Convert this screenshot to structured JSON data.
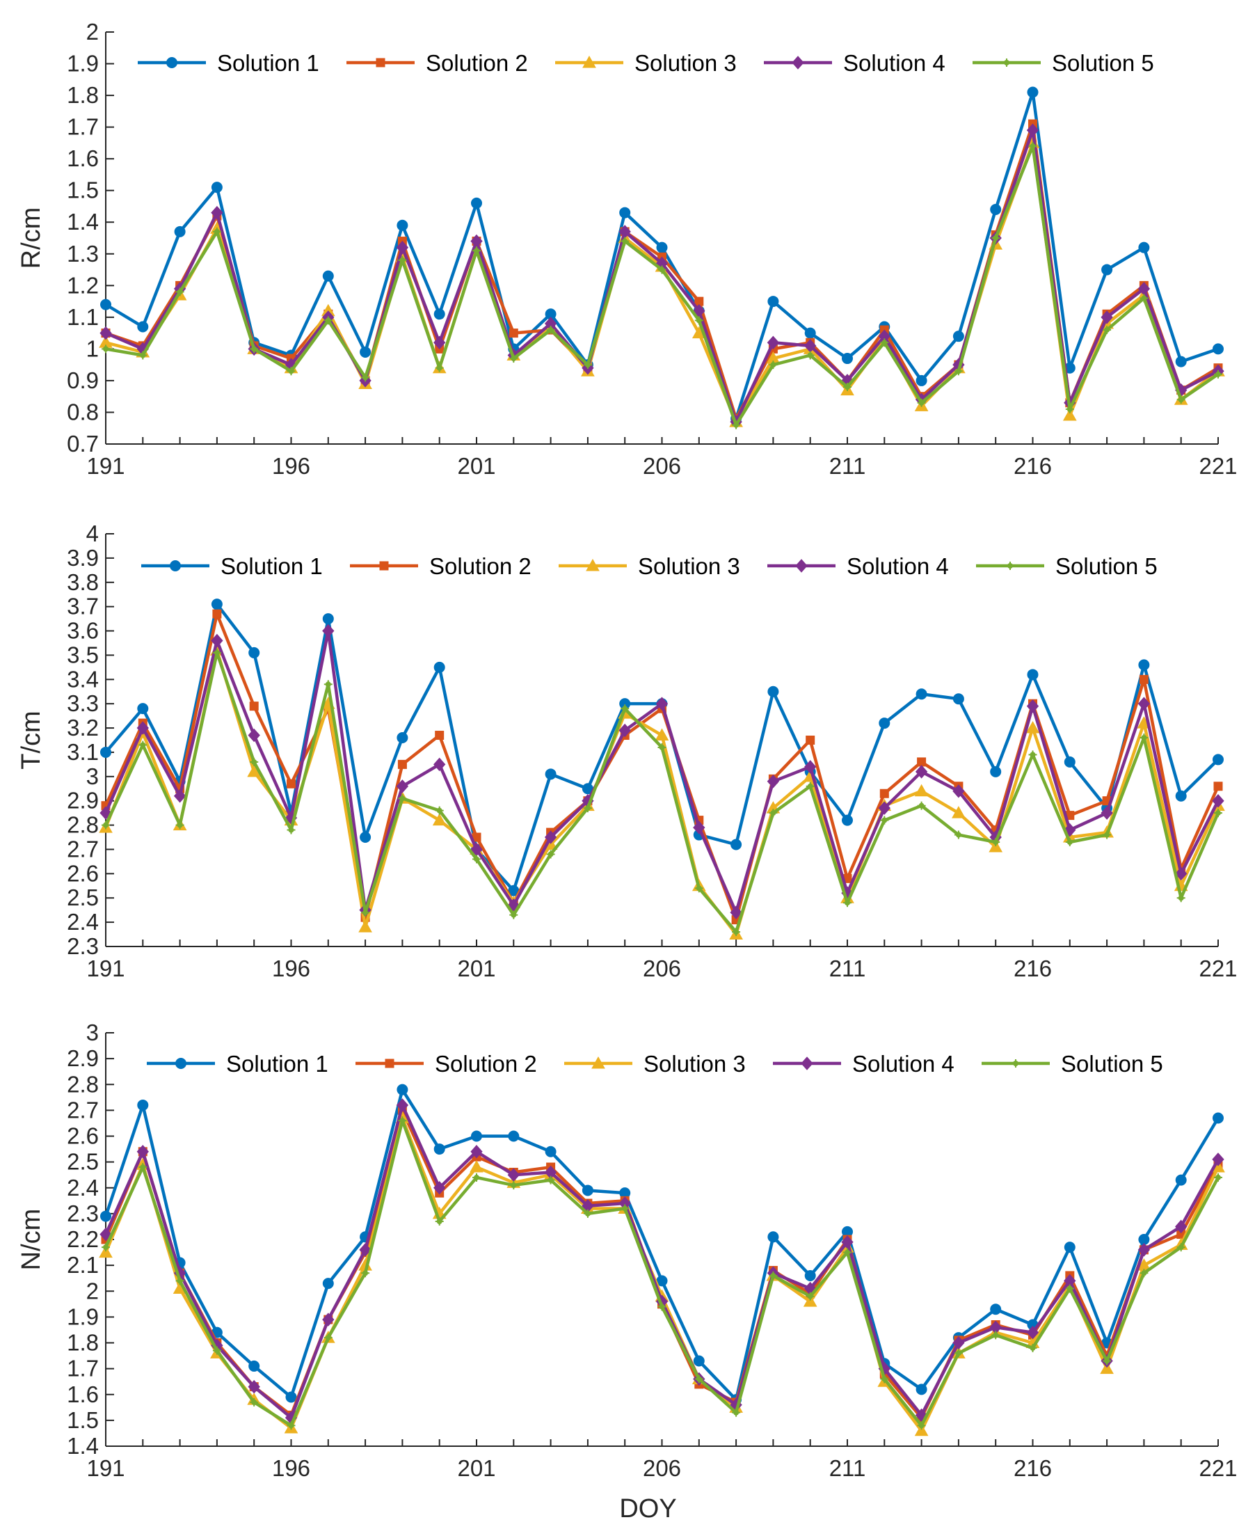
{
  "colors": {
    "Solution 1": "#0072BD",
    "Solution 2": "#D95319",
    "Solution 3": "#EDB120",
    "Solution 4": "#7E2F8E",
    "Solution 5": "#77AC30",
    "axis": "#262626"
  },
  "markers": {
    "Solution 1": "circle-marker",
    "Solution 2": "square-marker",
    "Solution 3": "triangle-marker",
    "Solution 4": "diamond-marker",
    "Solution 5": "star-marker"
  },
  "chart_data": [
    {
      "type": "line",
      "title": "",
      "xlabel": "",
      "ylabel": "R/cm",
      "xlim": [
        191,
        221
      ],
      "ylim": [
        0.7,
        2.0
      ],
      "xticks": [
        191,
        196,
        201,
        206,
        211,
        216,
        221
      ],
      "yticks": [
        0.7,
        0.8,
        0.9,
        1,
        1.1,
        1.2,
        1.3,
        1.4,
        1.5,
        1.6,
        1.7,
        1.8,
        1.9,
        2
      ],
      "ytick_labels": [
        "0.7",
        "0.8",
        "0.9",
        "1",
        "1.1",
        "1.2",
        "1.3",
        "1.4",
        "1.5",
        "1.6",
        "1.7",
        "1.8",
        "1.9",
        "2"
      ],
      "legend": "top, horizontal",
      "grid": false,
      "x": [
        191,
        192,
        193,
        194,
        195,
        196,
        197,
        198,
        199,
        200,
        201,
        202,
        203,
        204,
        205,
        206,
        207,
        208,
        209,
        210,
        211,
        212,
        213,
        214,
        215,
        216,
        217,
        218,
        219,
        220,
        221
      ],
      "series": [
        {
          "name": "Solution 1",
          "values": [
            1.14,
            1.07,
            1.37,
            1.51,
            1.02,
            0.98,
            1.23,
            0.99,
            1.39,
            1.11,
            1.46,
            1.0,
            1.11,
            0.95,
            1.43,
            1.32,
            1.12,
            0.78,
            1.15,
            1.05,
            0.97,
            1.07,
            0.9,
            1.04,
            1.44,
            1.81,
            0.94,
            1.25,
            1.32,
            0.96,
            1.0
          ]
        },
        {
          "name": "Solution 2",
          "values": [
            1.05,
            1.01,
            1.2,
            1.42,
            1.01,
            0.97,
            1.11,
            0.9,
            1.34,
            1.0,
            1.34,
            1.05,
            1.06,
            0.94,
            1.37,
            1.29,
            1.15,
            0.78,
            1.0,
            1.02,
            0.9,
            1.06,
            0.85,
            0.95,
            1.36,
            1.71,
            0.83,
            1.11,
            1.2,
            0.87,
            0.94
          ]
        },
        {
          "name": "Solution 3",
          "values": [
            1.02,
            0.99,
            1.17,
            1.38,
            1.0,
            0.94,
            1.12,
            0.89,
            1.29,
            0.94,
            1.31,
            0.98,
            1.07,
            0.93,
            1.35,
            1.26,
            1.05,
            0.77,
            0.97,
            1.0,
            0.87,
            1.03,
            0.82,
            0.94,
            1.33,
            1.65,
            0.79,
            1.08,
            1.17,
            0.84,
            0.93
          ]
        },
        {
          "name": "Solution 4",
          "values": [
            1.05,
            1.0,
            1.19,
            1.43,
            1.0,
            0.95,
            1.1,
            0.9,
            1.32,
            1.02,
            1.34,
            0.98,
            1.08,
            0.94,
            1.37,
            1.27,
            1.12,
            0.77,
            1.02,
            1.01,
            0.9,
            1.04,
            0.84,
            0.95,
            1.35,
            1.69,
            0.83,
            1.1,
            1.19,
            0.87,
            0.93
          ]
        },
        {
          "name": "Solution 5",
          "values": [
            1.0,
            0.98,
            1.18,
            1.37,
            1.0,
            0.93,
            1.09,
            0.91,
            1.28,
            0.94,
            1.31,
            0.97,
            1.06,
            0.95,
            1.34,
            1.25,
            1.09,
            0.76,
            0.95,
            0.98,
            0.88,
            1.02,
            0.83,
            0.93,
            1.35,
            1.64,
            0.81,
            1.06,
            1.16,
            0.84,
            0.92
          ]
        }
      ]
    },
    {
      "type": "line",
      "title": "",
      "xlabel": "",
      "ylabel": "T/cm",
      "xlim": [
        191,
        221
      ],
      "ylim": [
        2.3,
        4.0
      ],
      "xticks": [
        191,
        196,
        201,
        206,
        211,
        216,
        221
      ],
      "yticks": [
        2.3,
        2.4,
        2.5,
        2.6,
        2.7,
        2.8,
        2.9,
        3,
        3.1,
        3.2,
        3.3,
        3.4,
        3.5,
        3.6,
        3.7,
        3.8,
        3.9,
        4
      ],
      "ytick_labels": [
        "2.3",
        "2.4",
        "2.5",
        "2.6",
        "2.7",
        "2.8",
        "2.9",
        "3",
        "3.1",
        "3.2",
        "3.3",
        "3.4",
        "3.5",
        "3.6",
        "3.7",
        "3.8",
        "3.9",
        "4"
      ],
      "legend": "top, horizontal",
      "grid": false,
      "x": [
        191,
        192,
        193,
        194,
        195,
        196,
        197,
        198,
        199,
        200,
        201,
        202,
        203,
        204,
        205,
        206,
        207,
        208,
        209,
        210,
        211,
        212,
        213,
        214,
        215,
        216,
        217,
        218,
        219,
        220,
        221
      ],
      "series": [
        {
          "name": "Solution 1",
          "values": [
            3.1,
            3.28,
            2.98,
            3.71,
            3.51,
            2.85,
            3.65,
            2.75,
            3.16,
            3.45,
            2.7,
            2.53,
            3.01,
            2.95,
            3.3,
            3.3,
            2.76,
            2.72,
            3.35,
            3.02,
            2.82,
            3.22,
            3.34,
            3.32,
            3.02,
            3.42,
            3.06,
            2.87,
            3.46,
            2.92,
            3.07
          ]
        },
        {
          "name": "Solution 2",
          "values": [
            2.88,
            3.22,
            2.95,
            3.67,
            3.29,
            2.97,
            3.28,
            2.42,
            3.05,
            3.17,
            2.75,
            2.48,
            2.77,
            2.9,
            3.17,
            3.28,
            2.82,
            2.41,
            2.99,
            3.15,
            2.58,
            2.93,
            3.06,
            2.96,
            2.78,
            3.3,
            2.84,
            2.9,
            3.4,
            2.62,
            2.96
          ]
        },
        {
          "name": "Solution 3",
          "values": [
            2.79,
            3.18,
            2.8,
            3.52,
            3.02,
            2.82,
            3.3,
            2.38,
            2.91,
            2.82,
            2.7,
            2.48,
            2.72,
            2.88,
            3.26,
            3.17,
            2.55,
            2.35,
            2.87,
            3.0,
            2.5,
            2.88,
            2.94,
            2.85,
            2.71,
            3.2,
            2.75,
            2.77,
            3.22,
            2.55,
            2.88
          ]
        },
        {
          "name": "Solution 4",
          "values": [
            2.85,
            3.2,
            2.92,
            3.56,
            3.17,
            2.83,
            3.6,
            2.45,
            2.96,
            3.05,
            2.7,
            2.47,
            2.75,
            2.9,
            3.19,
            3.3,
            2.79,
            2.44,
            2.98,
            3.04,
            2.52,
            2.87,
            3.02,
            2.94,
            2.75,
            3.29,
            2.78,
            2.85,
            3.3,
            2.6,
            2.9
          ]
        },
        {
          "name": "Solution 5",
          "values": [
            2.8,
            3.13,
            2.8,
            3.51,
            3.06,
            2.78,
            3.38,
            2.44,
            2.91,
            2.86,
            2.66,
            2.43,
            2.68,
            2.87,
            3.28,
            3.12,
            2.54,
            2.36,
            2.85,
            2.96,
            2.48,
            2.82,
            2.88,
            2.76,
            2.73,
            3.09,
            2.73,
            2.76,
            3.16,
            2.5,
            2.85
          ]
        }
      ]
    },
    {
      "type": "line",
      "title": "",
      "xlabel": "DOY",
      "ylabel": "N/cm",
      "xlim": [
        191,
        221
      ],
      "ylim": [
        1.4,
        3.0
      ],
      "xticks": [
        191,
        196,
        201,
        206,
        211,
        216,
        221
      ],
      "yticks": [
        1.4,
        1.5,
        1.6,
        1.7,
        1.8,
        1.9,
        2,
        2.1,
        2.2,
        2.3,
        2.4,
        2.5,
        2.6,
        2.7,
        2.8,
        2.9,
        3
      ],
      "ytick_labels": [
        "1.4",
        "1.5",
        "1.6",
        "1.7",
        "1.8",
        "1.9",
        "2",
        "2.1",
        "2.2",
        "2.3",
        "2.4",
        "2.5",
        "2.6",
        "2.7",
        "2.8",
        "2.9",
        "3"
      ],
      "legend": "top, horizontal",
      "grid": false,
      "x": [
        191,
        192,
        193,
        194,
        195,
        196,
        197,
        198,
        199,
        200,
        201,
        202,
        203,
        204,
        205,
        206,
        207,
        208,
        209,
        210,
        211,
        212,
        213,
        214,
        215,
        216,
        217,
        218,
        219,
        220,
        221
      ],
      "series": [
        {
          "name": "Solution 1",
          "values": [
            2.29,
            2.72,
            2.11,
            1.84,
            1.71,
            1.59,
            2.03,
            2.21,
            2.78,
            2.55,
            2.6,
            2.6,
            2.54,
            2.39,
            2.38,
            2.04,
            1.73,
            1.58,
            2.21,
            2.06,
            2.23,
            1.72,
            1.62,
            1.82,
            1.93,
            1.87,
            2.17,
            1.8,
            2.2,
            2.43,
            2.67
          ]
        },
        {
          "name": "Solution 2",
          "values": [
            2.2,
            2.54,
            2.07,
            1.8,
            1.63,
            1.52,
            1.89,
            2.15,
            2.7,
            2.38,
            2.52,
            2.46,
            2.48,
            2.34,
            2.35,
            1.95,
            1.64,
            1.57,
            2.08,
            1.99,
            2.2,
            1.68,
            1.51,
            1.81,
            1.87,
            1.83,
            2.06,
            1.75,
            2.16,
            2.22,
            2.49
          ]
        },
        {
          "name": "Solution 3",
          "values": [
            2.15,
            2.49,
            2.01,
            1.76,
            1.58,
            1.47,
            1.82,
            2.1,
            2.67,
            2.3,
            2.48,
            2.42,
            2.45,
            2.32,
            2.32,
            1.98,
            1.66,
            1.55,
            2.06,
            1.96,
            2.17,
            1.65,
            1.46,
            1.76,
            1.84,
            1.8,
            2.02,
            1.7,
            2.1,
            2.18,
            2.48
          ]
        },
        {
          "name": "Solution 4",
          "values": [
            2.22,
            2.54,
            2.07,
            1.79,
            1.63,
            1.51,
            1.89,
            2.16,
            2.72,
            2.4,
            2.54,
            2.45,
            2.46,
            2.33,
            2.34,
            1.96,
            1.66,
            1.56,
            2.07,
            2.01,
            2.19,
            1.7,
            1.52,
            1.8,
            1.86,
            1.84,
            2.04,
            1.73,
            2.16,
            2.25,
            2.51
          ]
        },
        {
          "name": "Solution 5",
          "values": [
            2.17,
            2.48,
            2.04,
            1.77,
            1.57,
            1.48,
            1.82,
            2.07,
            2.66,
            2.27,
            2.44,
            2.41,
            2.43,
            2.3,
            2.32,
            1.94,
            1.66,
            1.53,
            2.06,
            1.98,
            2.15,
            1.66,
            1.48,
            1.76,
            1.83,
            1.78,
            2.01,
            1.73,
            2.07,
            2.17,
            2.44
          ]
        }
      ]
    }
  ]
}
